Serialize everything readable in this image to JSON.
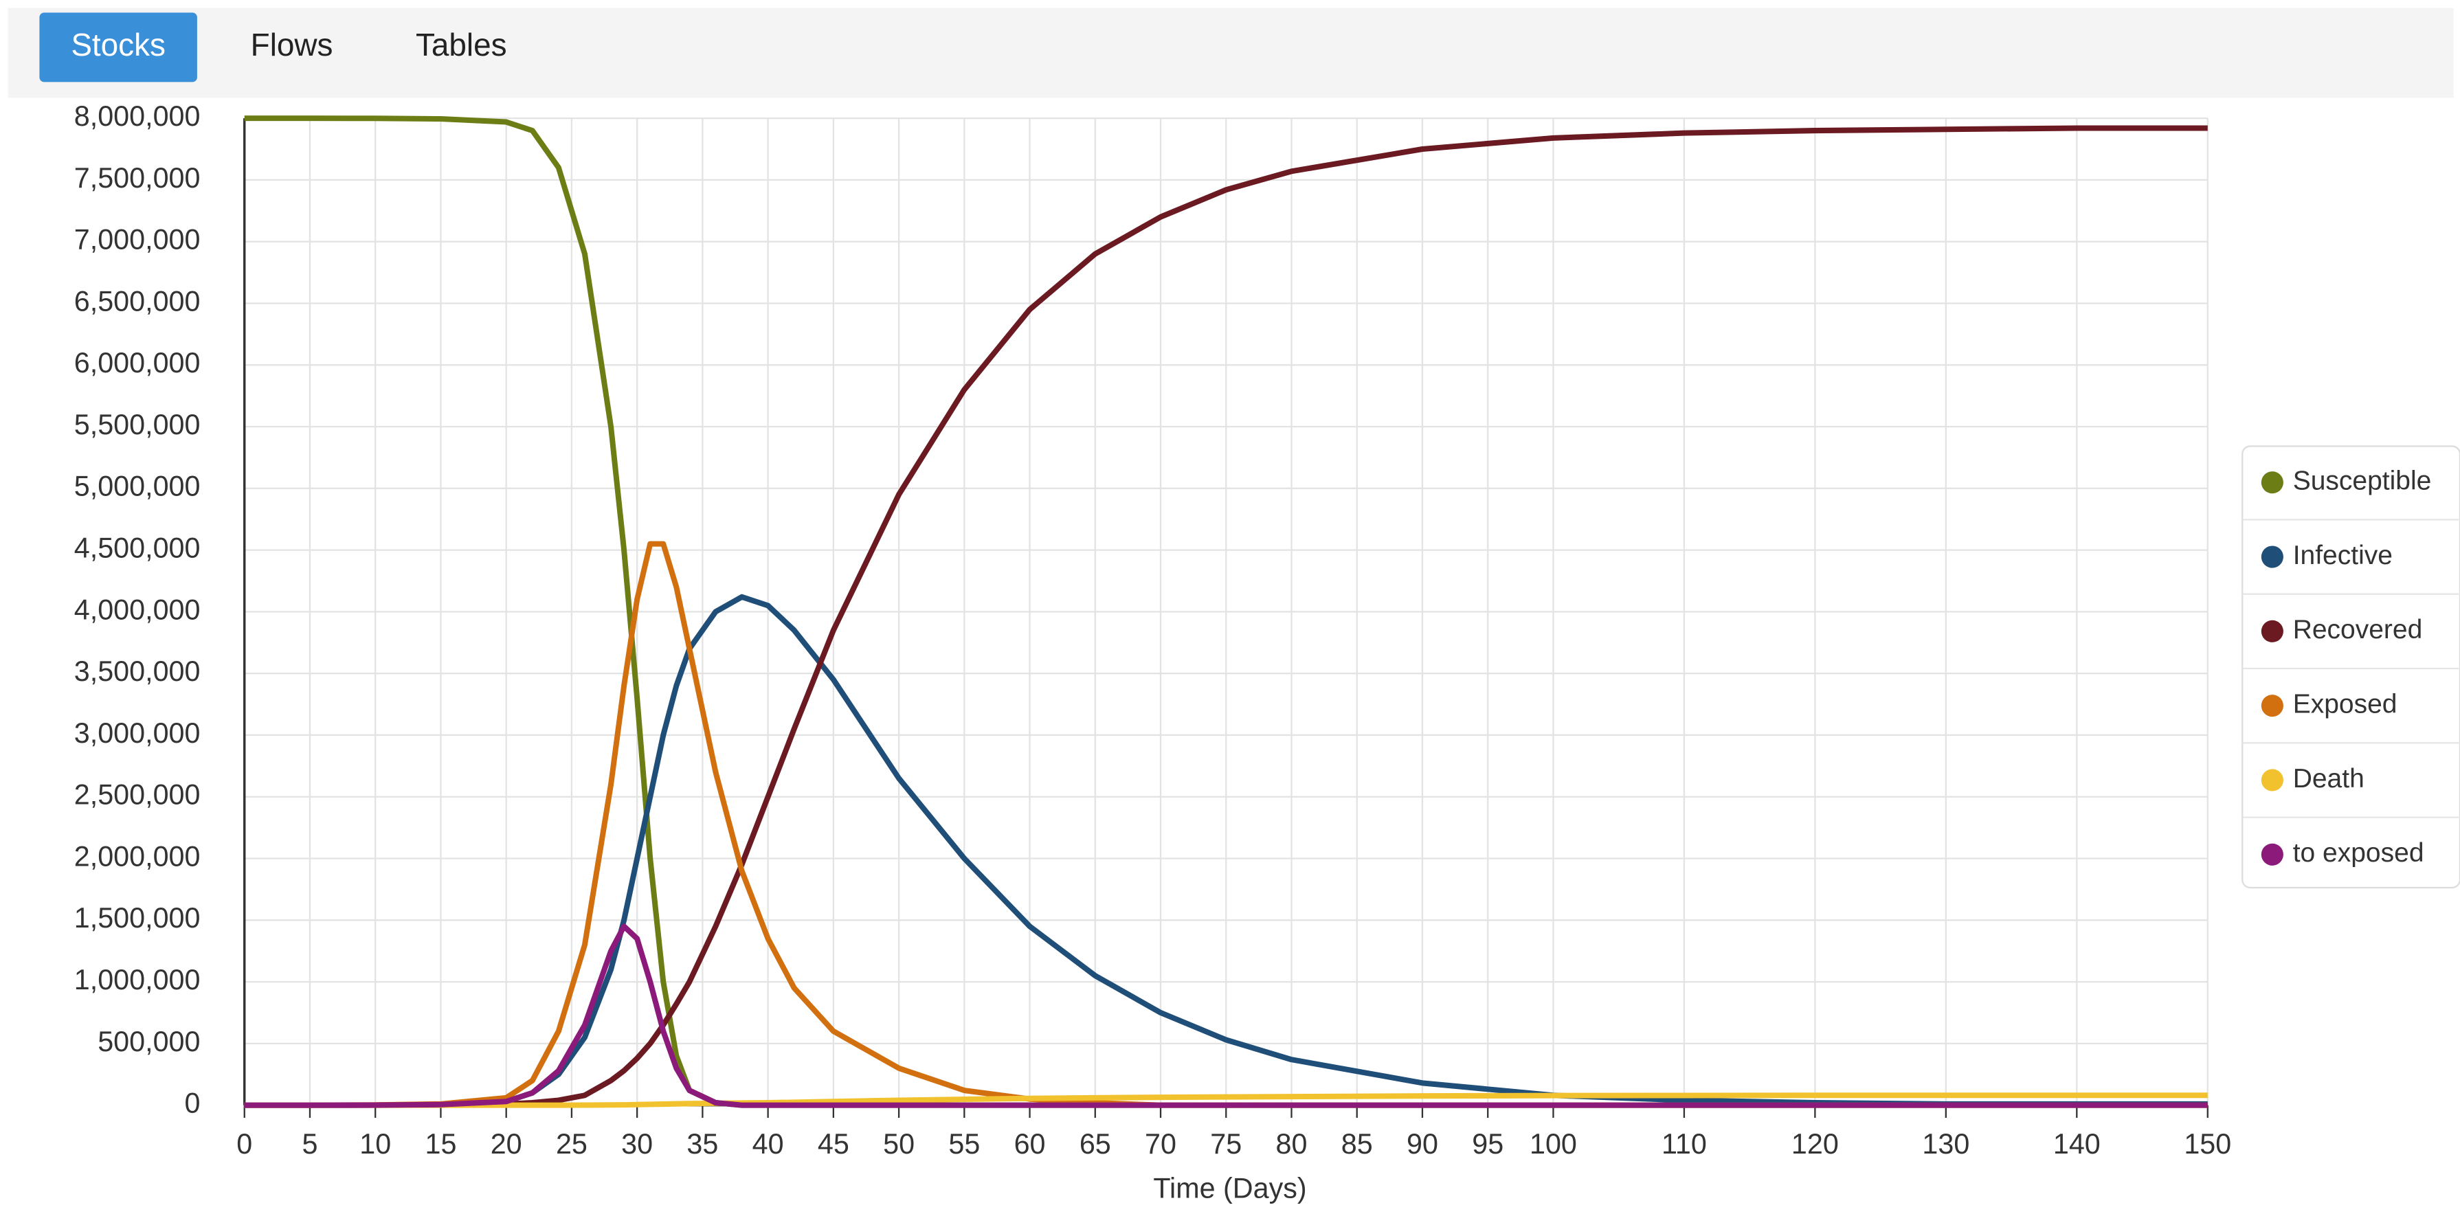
{
  "tabs": [
    "Stocks",
    "Flows",
    "Tables"
  ],
  "active_tab": 0,
  "chart_data": {
    "type": "line",
    "x_label": "Time (Days)",
    "x": [
      0,
      5,
      10,
      15,
      20,
      22,
      24,
      26,
      28,
      29,
      30,
      31,
      32,
      33,
      34,
      36,
      38,
      40,
      42,
      45,
      50,
      55,
      60,
      65,
      70,
      75,
      80,
      90,
      100,
      110,
      120,
      130,
      140,
      150
    ],
    "xlim": [
      0,
      150
    ],
    "xticks": [
      0,
      5,
      10,
      15,
      20,
      25,
      30,
      35,
      40,
      45,
      50,
      55,
      60,
      65,
      70,
      75,
      80,
      85,
      90,
      95,
      100,
      110,
      120,
      130,
      140,
      150
    ],
    "ylim": [
      0,
      8000000
    ],
    "yticks": [
      0,
      {
        "value": 500000,
        "label": "500,000"
      },
      {
        "value": 1000000,
        "label": "1,000,000"
      },
      {
        "value": 1500000,
        "label": "1,500,000"
      },
      {
        "value": 2000000,
        "label": "2,000,000"
      },
      {
        "value": 2500000,
        "label": "2,500,000"
      },
      {
        "value": 3000000,
        "label": "3,000,000"
      },
      {
        "value": 3500000,
        "label": "3,500,000"
      },
      {
        "value": 4000000,
        "label": "4,000,000"
      },
      {
        "value": 4500000,
        "label": "4,500,000"
      },
      {
        "value": 5000000,
        "label": "5,000,000"
      },
      {
        "value": 5500000,
        "label": "5,500,000"
      },
      {
        "value": 6000000,
        "label": "6,000,000"
      },
      {
        "value": 6500000,
        "label": "6,500,000"
      },
      {
        "value": 7000000,
        "label": "7,000,000"
      },
      {
        "value": 7500000,
        "label": "7,500,000"
      },
      {
        "value": 8000000,
        "label": "8,000,000"
      }
    ],
    "grid": true,
    "legend": "right",
    "series": [
      {
        "name": "Susceptible",
        "color": "#6b7d14",
        "values": [
          8000000,
          8000000,
          7999000,
          7995000,
          7970000,
          7900000,
          7600000,
          6900000,
          5500000,
          4500000,
          3300000,
          2000000,
          1000000,
          400000,
          120000,
          20000,
          0,
          0,
          0,
          0,
          0,
          0,
          0,
          0,
          0,
          0,
          0,
          0,
          0,
          0,
          0,
          0,
          0,
          0
        ]
      },
      {
        "name": "Infective",
        "color": "#1f4e79",
        "values": [
          0,
          0,
          1000,
          5000,
          30000,
          100000,
          250000,
          550000,
          1100000,
          1500000,
          2000000,
          2500000,
          3000000,
          3400000,
          3700000,
          4000000,
          4120000,
          4050000,
          3850000,
          3450000,
          2650000,
          2000000,
          1450000,
          1050000,
          750000,
          530000,
          370000,
          180000,
          80000,
          40000,
          20000,
          10000,
          10000,
          10000
        ]
      },
      {
        "name": "Recovered",
        "color": "#6b1a22",
        "values": [
          0,
          0,
          0,
          2000,
          10000,
          20000,
          40000,
          80000,
          200000,
          280000,
          380000,
          500000,
          650000,
          820000,
          1000000,
          1450000,
          1950000,
          2500000,
          3050000,
          3850000,
          4950000,
          5800000,
          6450000,
          6900000,
          7200000,
          7420000,
          7570000,
          7750000,
          7840000,
          7880000,
          7900000,
          7910000,
          7920000,
          7920000
        ]
      },
      {
        "name": "Exposed",
        "color": "#d2700f",
        "values": [
          0,
          0,
          2000,
          10000,
          60000,
          200000,
          600000,
          1300000,
          2600000,
          3400000,
          4100000,
          4550000,
          4550000,
          4200000,
          3700000,
          2700000,
          1900000,
          1350000,
          950000,
          600000,
          300000,
          120000,
          50000,
          20000,
          0,
          0,
          0,
          0,
          0,
          0,
          0,
          0,
          0,
          0
        ]
      },
      {
        "name": "Death",
        "color": "#f2c12e",
        "values": [
          0,
          0,
          0,
          0,
          0,
          0,
          0,
          1000,
          2000,
          3000,
          5000,
          7000,
          9000,
          11000,
          13000,
          16000,
          18000,
          20000,
          24000,
          30000,
          40000,
          48000,
          55000,
          60000,
          64000,
          67000,
          70000,
          75000,
          78000,
          79000,
          80000,
          80000,
          80000,
          80000
        ]
      },
      {
        "name": "to exposed",
        "color": "#8b1a7a",
        "values": [
          0,
          0,
          1000,
          5000,
          30000,
          100000,
          280000,
          650000,
          1250000,
          1450000,
          1350000,
          1000000,
          600000,
          300000,
          120000,
          20000,
          0,
          0,
          0,
          0,
          0,
          0,
          0,
          0,
          0,
          0,
          0,
          0,
          0,
          0,
          0,
          0,
          0,
          0
        ]
      }
    ]
  }
}
